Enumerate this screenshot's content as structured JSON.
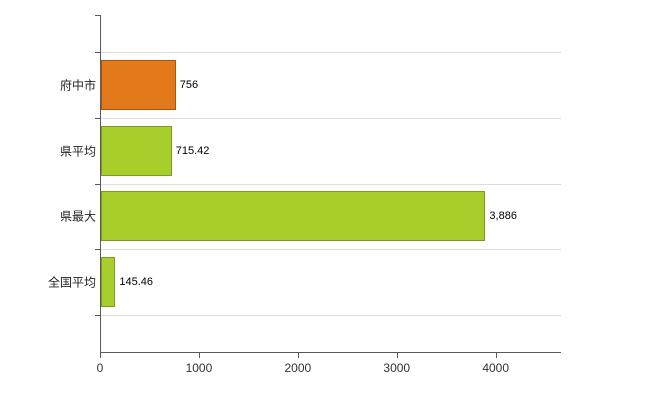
{
  "chart_data": {
    "type": "bar",
    "orientation": "horizontal",
    "title": "",
    "xlabel": "",
    "ylabel": "",
    "categories": [
      "府中市",
      "県平均",
      "県最大",
      "全国平均"
    ],
    "values": [
      756,
      715.42,
      3886,
      145.46
    ],
    "value_labels": [
      "756",
      "715.42",
      "3,886",
      "145.46"
    ],
    "bar_colors": [
      "#e2791b",
      "#a8ce2c",
      "#a8ce2c",
      "#a8ce2c"
    ],
    "bar_border_colors": [
      "#a55712",
      "#7f9c21",
      "#7f9c21",
      "#7f9c21"
    ],
    "xlim": [
      0,
      4650
    ],
    "x_ticks": [
      0,
      1000,
      2000,
      3000,
      4000
    ],
    "x_tick_labels": [
      "0",
      "1000",
      "2000",
      "3000",
      "4000"
    ],
    "grid": true,
    "legend": "none",
    "background_color": "#ffffff",
    "axis_color": "#595959",
    "gridline_color": "#dedede"
  }
}
